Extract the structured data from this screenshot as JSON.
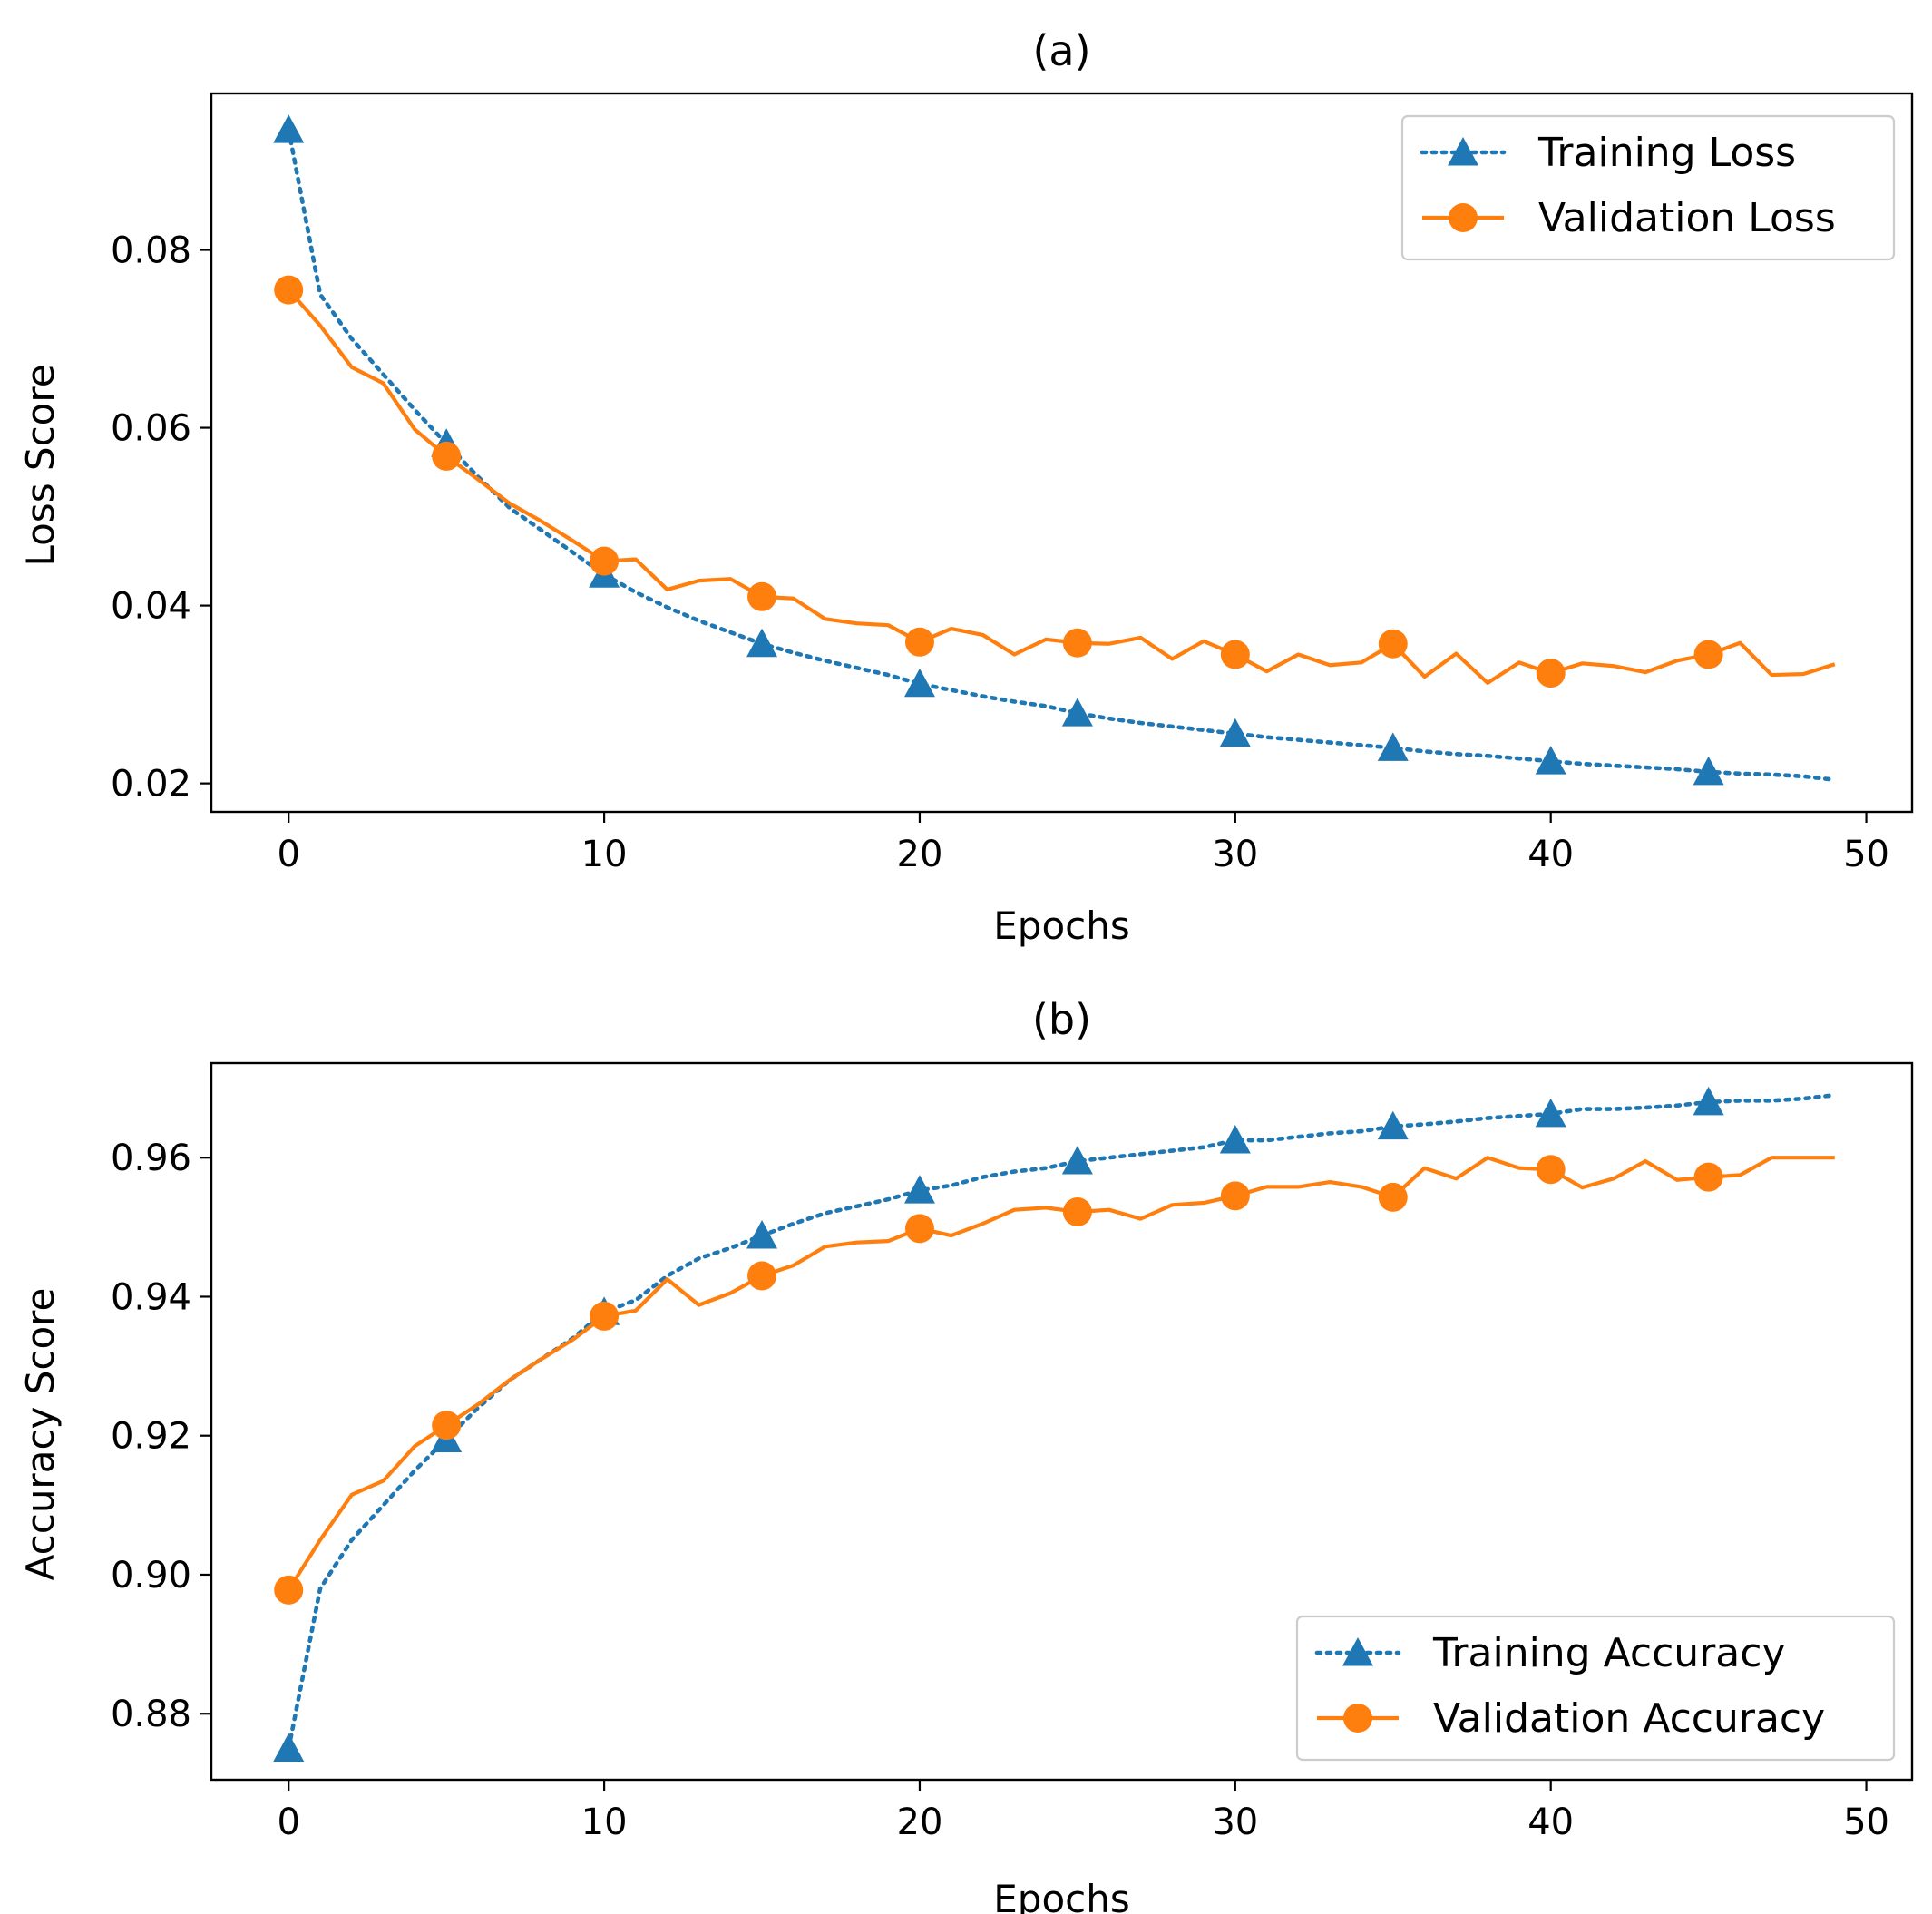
{
  "chart_data": [
    {
      "type": "line",
      "title": "(a)",
      "xlabel": "Epochs",
      "ylabel": "Loss Score",
      "xlim": [
        -2.45,
        51.45
      ],
      "ylim": [
        0.0168,
        0.0976
      ],
      "x_ticks": [
        0,
        10,
        20,
        30,
        40,
        50
      ],
      "x_tick_labels": [
        "0",
        "10",
        "20",
        "30",
        "40",
        "50"
      ],
      "y_ticks": [
        0.02,
        0.04,
        0.06,
        0.08
      ],
      "y_tick_labels": [
        "0.02",
        "0.04",
        "0.06",
        "0.08"
      ],
      "legend_position": "upper right",
      "marker_every": 5,
      "series": [
        {
          "name": "Training Loss",
          "color": "#1f77b4",
          "style": "dotted",
          "marker": "triangle",
          "x": [
            0,
            1,
            2,
            3,
            4,
            5,
            6,
            7,
            8,
            9,
            10,
            11,
            12,
            13,
            14,
            15,
            16,
            17,
            18,
            19,
            20,
            21,
            22,
            23,
            24,
            25,
            26,
            27,
            28,
            29,
            30,
            31,
            32,
            33,
            34,
            35,
            36,
            37,
            38,
            39,
            40,
            41,
            42,
            43,
            44,
            45,
            46,
            47,
            48,
            49
          ],
          "values": [
            0.0935,
            0.075,
            0.07,
            0.066,
            0.062,
            0.0582,
            0.0545,
            0.051,
            0.0485,
            0.046,
            0.0435,
            0.0415,
            0.0398,
            0.0383,
            0.037,
            0.0357,
            0.0347,
            0.0338,
            0.033,
            0.0322,
            0.0312,
            0.0305,
            0.0298,
            0.0292,
            0.0287,
            0.0279,
            0.0273,
            0.0268,
            0.0264,
            0.026,
            0.0256,
            0.0252,
            0.0249,
            0.0246,
            0.0243,
            0.024,
            0.0236,
            0.0233,
            0.0231,
            0.0228,
            0.0225,
            0.0222,
            0.022,
            0.0218,
            0.0216,
            0.0213,
            0.0211,
            0.021,
            0.0208,
            0.0204
          ]
        },
        {
          "name": "Validation Loss",
          "color": "#ff7f0e",
          "style": "solid",
          "marker": "circle",
          "x": [
            0,
            1,
            2,
            3,
            4,
            5,
            6,
            7,
            8,
            9,
            10,
            11,
            12,
            13,
            14,
            15,
            16,
            17,
            18,
            19,
            20,
            21,
            22,
            23,
            24,
            25,
            26,
            27,
            28,
            29,
            30,
            31,
            32,
            33,
            34,
            35,
            36,
            37,
            38,
            39,
            40,
            41,
            42,
            43,
            44,
            45,
            46,
            47,
            48,
            49
          ],
          "values": [
            0.0755,
            0.0715,
            0.0668,
            0.065,
            0.0598,
            0.0568,
            0.0542,
            0.0515,
            0.0495,
            0.0473,
            0.045,
            0.0452,
            0.0418,
            0.0428,
            0.043,
            0.041,
            0.0408,
            0.0385,
            0.038,
            0.0378,
            0.0359,
            0.0374,
            0.0367,
            0.0345,
            0.0362,
            0.0358,
            0.0357,
            0.0364,
            0.034,
            0.036,
            0.0345,
            0.0326,
            0.0345,
            0.0333,
            0.0336,
            0.0357,
            0.032,
            0.0346,
            0.0313,
            0.0336,
            0.0324,
            0.0335,
            0.0332,
            0.0325,
            0.0338,
            0.0345,
            0.0358,
            0.0322,
            0.0323,
            0.0334
          ]
        }
      ]
    },
    {
      "type": "line",
      "title": "(b)",
      "xlabel": "Epochs",
      "ylabel": "Accuracy Score",
      "xlim": [
        -2.45,
        51.45
      ],
      "ylim": [
        0.8705,
        0.9736
      ],
      "x_ticks": [
        0,
        10,
        20,
        30,
        40,
        50
      ],
      "x_tick_labels": [
        "0",
        "10",
        "20",
        "30",
        "40",
        "50"
      ],
      "y_ticks": [
        0.88,
        0.9,
        0.92,
        0.94,
        0.96
      ],
      "y_tick_labels": [
        "0.88",
        "0.90",
        "0.92",
        "0.94",
        "0.96"
      ],
      "legend_position": "lower right",
      "marker_every": 5,
      "series": [
        {
          "name": "Training Accuracy",
          "color": "#1f77b4",
          "style": "dotted",
          "marker": "triangle",
          "x": [
            0,
            1,
            2,
            3,
            4,
            5,
            6,
            7,
            8,
            9,
            10,
            11,
            12,
            13,
            14,
            15,
            16,
            17,
            18,
            19,
            20,
            21,
            22,
            23,
            24,
            25,
            26,
            27,
            28,
            29,
            30,
            31,
            32,
            33,
            34,
            35,
            36,
            37,
            38,
            39,
            40,
            41,
            42,
            43,
            44,
            45,
            46,
            47,
            48,
            49
          ],
          "values": [
            0.875,
            0.898,
            0.905,
            0.91,
            0.915,
            0.9195,
            0.924,
            0.928,
            0.931,
            0.934,
            0.9378,
            0.9395,
            0.943,
            0.9455,
            0.947,
            0.9488,
            0.9505,
            0.952,
            0.953,
            0.954,
            0.9553,
            0.956,
            0.9572,
            0.958,
            0.9585,
            0.9595,
            0.96,
            0.9605,
            0.961,
            0.9615,
            0.9625,
            0.9625,
            0.963,
            0.9635,
            0.9638,
            0.9645,
            0.9648,
            0.9652,
            0.9657,
            0.966,
            0.9663,
            0.967,
            0.967,
            0.9672,
            0.9675,
            0.968,
            0.9682,
            0.9682,
            0.9685,
            0.969
          ]
        },
        {
          "name": "Validation Accuracy",
          "color": "#ff7f0e",
          "style": "solid",
          "marker": "circle",
          "x": [
            0,
            1,
            2,
            3,
            4,
            5,
            6,
            7,
            8,
            9,
            10,
            11,
            12,
            13,
            14,
            15,
            16,
            17,
            18,
            19,
            20,
            21,
            22,
            23,
            24,
            25,
            26,
            27,
            28,
            29,
            30,
            31,
            32,
            33,
            34,
            35,
            36,
            37,
            38,
            39,
            40,
            41,
            42,
            43,
            44,
            45,
            46,
            47,
            48,
            49
          ],
          "values": [
            0.8978,
            0.905,
            0.9115,
            0.9135,
            0.9185,
            0.9215,
            0.9245,
            0.928,
            0.931,
            0.9338,
            0.9372,
            0.938,
            0.9425,
            0.9388,
            0.9405,
            0.943,
            0.9445,
            0.9472,
            0.9478,
            0.948,
            0.9498,
            0.9488,
            0.9505,
            0.9525,
            0.9528,
            0.9522,
            0.9525,
            0.9512,
            0.9532,
            0.9535,
            0.9545,
            0.9558,
            0.9558,
            0.9565,
            0.9558,
            0.9543,
            0.9585,
            0.957,
            0.96,
            0.9585,
            0.9583,
            0.9557,
            0.957,
            0.9595,
            0.9568,
            0.9572,
            0.9575,
            0.96,
            0.96,
            0.96
          ]
        }
      ]
    }
  ]
}
